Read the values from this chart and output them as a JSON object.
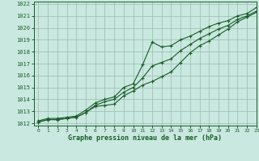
{
  "xlabel": "Graphe pression niveau de la mer (hPa)",
  "xlim": [
    -0.5,
    23
  ],
  "ylim": [
    1011.8,
    1022.2
  ],
  "yticks": [
    1012,
    1013,
    1014,
    1015,
    1016,
    1017,
    1018,
    1019,
    1020,
    1021,
    1022
  ],
  "xticks": [
    0,
    1,
    2,
    3,
    4,
    5,
    6,
    7,
    8,
    9,
    10,
    11,
    12,
    13,
    14,
    15,
    16,
    17,
    18,
    19,
    20,
    21,
    22,
    23
  ],
  "background_color": "#c8e8e0",
  "grid_color": "#99bbaa",
  "line_color": "#1a5c28",
  "hours": [
    0,
    1,
    2,
    3,
    4,
    5,
    6,
    7,
    8,
    9,
    10,
    11,
    12,
    13,
    14,
    15,
    16,
    17,
    18,
    19,
    20,
    21,
    22,
    23
  ],
  "line_top": [
    1012.2,
    1012.4,
    1012.4,
    1012.5,
    1012.6,
    1013.1,
    1013.7,
    1014.0,
    1014.2,
    1015.0,
    1015.3,
    1016.9,
    1018.8,
    1018.4,
    1018.5,
    1019.0,
    1019.3,
    1019.7,
    1020.1,
    1020.4,
    1020.6,
    1021.0,
    1021.2,
    1021.7
  ],
  "line_mid": [
    1012.1,
    1012.3,
    1012.3,
    1012.4,
    1012.5,
    1012.9,
    1013.5,
    1013.8,
    1014.0,
    1014.6,
    1015.0,
    1015.8,
    1016.8,
    1017.1,
    1017.4,
    1018.1,
    1018.6,
    1019.1,
    1019.5,
    1019.9,
    1020.2,
    1020.7,
    1021.0,
    1021.4
  ],
  "line_bot": [
    1012.1,
    1012.3,
    1012.3,
    1012.4,
    1012.5,
    1012.9,
    1013.4,
    1013.5,
    1013.6,
    1014.3,
    1014.7,
    1015.2,
    1015.5,
    1015.9,
    1016.3,
    1017.1,
    1017.9,
    1018.5,
    1018.9,
    1019.4,
    1019.9,
    1020.5,
    1020.9,
    1021.3
  ],
  "marker": "+"
}
